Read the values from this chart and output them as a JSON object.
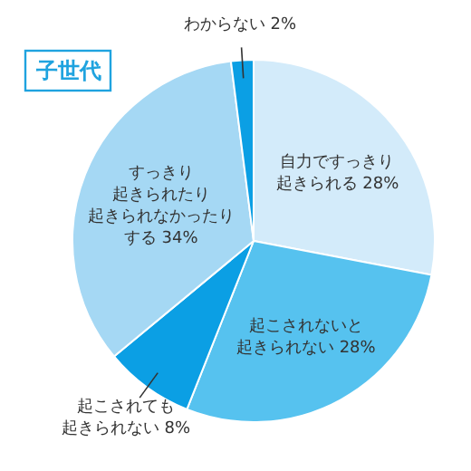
{
  "chart_data": {
    "type": "pie",
    "title": "子世代",
    "categories": [
      "自力ですっきり起きられる",
      "起こされないと起きられない",
      "起こされても起きられない",
      "すっきり起きられたり起きられなかったりする",
      "わからない"
    ],
    "values": [
      28,
      28,
      8,
      34,
      2
    ],
    "value_labels": [
      "28%",
      "28%",
      "8%",
      "34%",
      "2%"
    ],
    "colors": [
      "#d3ebfa",
      "#56c2ef",
      "#0b9fe4",
      "#a5d8f4",
      "#0b9fe4"
    ]
  }
}
